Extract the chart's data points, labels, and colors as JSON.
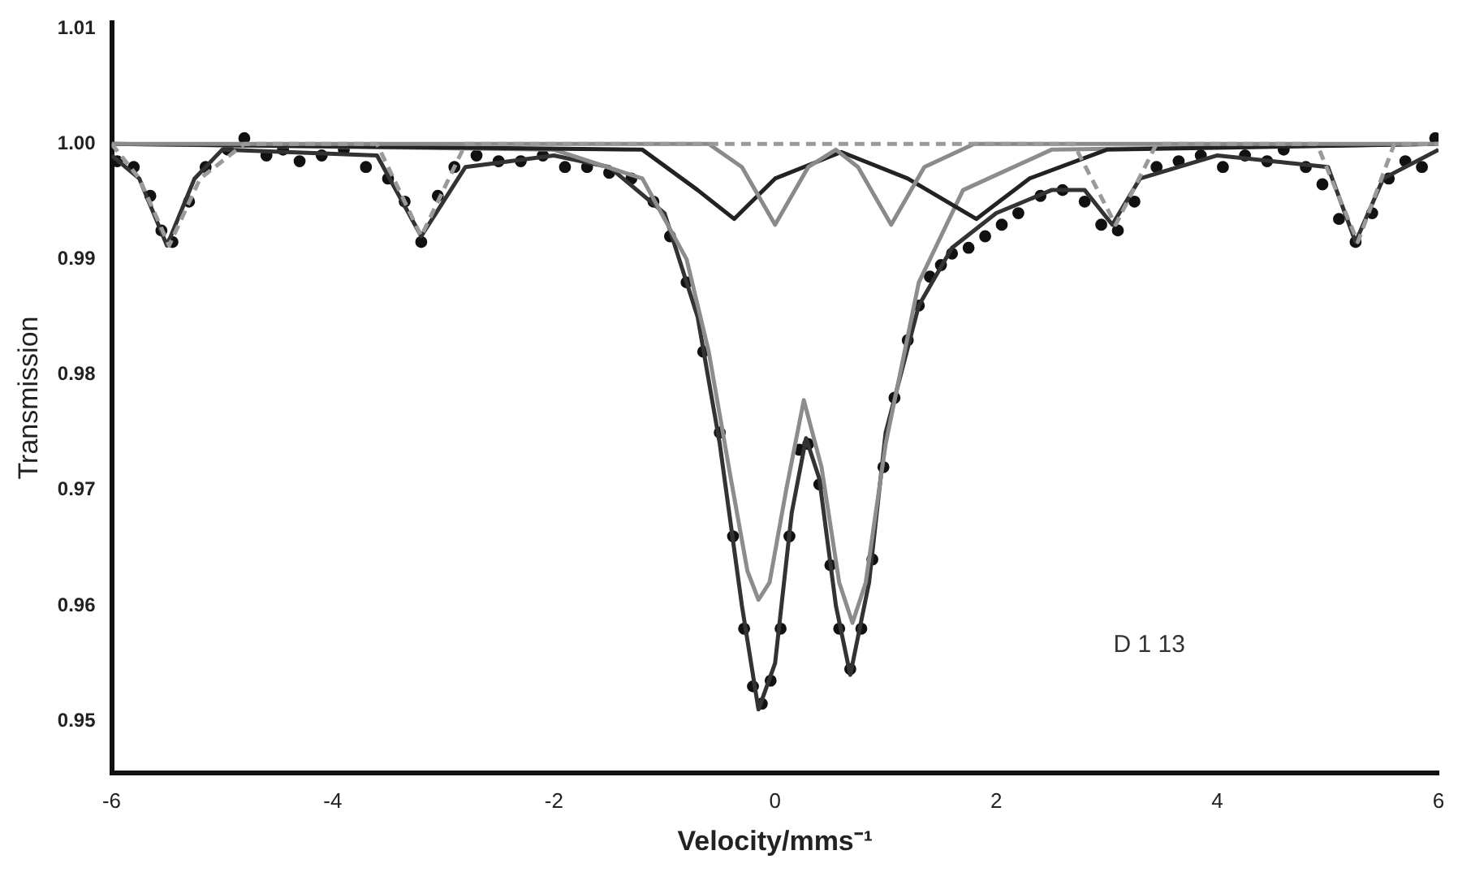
{
  "chart_data": {
    "type": "line",
    "xlabel": "Velocity/mms⁻¹",
    "ylabel": "Transmission",
    "xlim": [
      -6,
      6
    ],
    "xticks": [
      -6,
      -4,
      -2,
      0,
      2,
      4,
      6
    ],
    "ylim": [
      0.9455,
      1.0105
    ],
    "yticks": [
      0.95,
      0.96,
      0.97,
      0.98,
      0.99,
      {
        "value": 1,
        "label": "1.00"
      },
      1.01
    ],
    "grid": false,
    "legend": false,
    "annotations": [
      "D 1 13"
    ],
    "series": [
      {
        "color": "#9a9a9a",
        "line_style": "dashed",
        "marker": "none",
        "x": [
          -6,
          -5.75,
          -5.48,
          -5.2,
          -4.8,
          -3.6,
          -3.2,
          -2.8,
          2.7,
          3.08,
          3.45,
          4.9,
          5.27,
          5.6,
          6
        ],
        "values": [
          1.0,
          0.997,
          0.9912,
          0.997,
          1.0,
          1.0,
          0.992,
          1.0,
          1.0,
          0.993,
          1.0,
          1.0,
          0.9915,
          1.0,
          1.0
        ]
      },
      {
        "color": "#8a8a8a",
        "marker": "none",
        "x": [
          -6,
          -0.6,
          -0.3,
          0,
          0.3,
          0.55,
          0.75,
          1.05,
          1.35,
          1.8,
          6
        ],
        "values": [
          1.0,
          1.0,
          0.998,
          0.993,
          0.998,
          0.9995,
          0.998,
          0.993,
          0.998,
          1.0,
          1.0
        ]
      },
      {
        "color": "#222222",
        "marker": "none",
        "x": [
          -6,
          -1.2,
          -0.7,
          -0.37,
          0,
          0.6,
          1.2,
          1.82,
          2.3,
          3,
          6
        ],
        "values": [
          1.0,
          0.9995,
          0.996,
          0.9935,
          0.997,
          0.9993,
          0.997,
          0.9935,
          0.997,
          0.9995,
          1.0
        ]
      },
      {
        "color": "#8c8c8c",
        "marker": "none",
        "x": [
          -6,
          -2,
          -1.2,
          -0.8,
          -0.6,
          -0.4,
          -0.25,
          -0.15,
          -0.05,
          0.1,
          0.26,
          0.42,
          0.58,
          0.7,
          0.82,
          1.0,
          1.3,
          1.7,
          2.5,
          6
        ],
        "values": [
          1.0,
          0.9995,
          0.997,
          0.99,
          0.982,
          0.971,
          0.963,
          0.9605,
          0.962,
          0.97,
          0.9778,
          0.972,
          0.962,
          0.9585,
          0.962,
          0.974,
          0.988,
          0.996,
          0.9995,
          1.0
        ]
      },
      {
        "color": "#333333",
        "marker": "none",
        "x": [
          -6,
          -5.75,
          -5.5,
          -5.25,
          -5,
          -3.6,
          -3.2,
          -2.8,
          -2,
          -1.5,
          -1.0,
          -0.7,
          -0.5,
          -0.3,
          -0.15,
          0.0,
          0.15,
          0.28,
          0.4,
          0.55,
          0.68,
          0.85,
          1.0,
          1.3,
          1.6,
          2.0,
          2.5,
          2.8,
          3.05,
          3.3,
          4,
          5.0,
          5.25,
          5.5,
          6
        ],
        "values": [
          0.999,
          0.997,
          0.9912,
          0.997,
          0.9995,
          0.999,
          0.992,
          0.998,
          0.999,
          0.998,
          0.994,
          0.985,
          0.974,
          0.96,
          0.951,
          0.955,
          0.968,
          0.9745,
          0.971,
          0.96,
          0.954,
          0.962,
          0.975,
          0.986,
          0.991,
          0.994,
          0.996,
          0.996,
          0.993,
          0.997,
          0.999,
          0.998,
          0.9915,
          0.997,
          0.9995
        ]
      },
      {
        "type": "scatter",
        "color": "#111111",
        "marker": "circle",
        "x": [
          -5.95,
          -5.8,
          -5.65,
          -5.55,
          -5.45,
          -5.3,
          -5.15,
          -4.95,
          -4.8,
          -4.6,
          -4.45,
          -4.3,
          -4.1,
          -3.9,
          -3.7,
          -3.5,
          -3.35,
          -3.2,
          -3.05,
          -2.9,
          -2.7,
          -2.5,
          -2.3,
          -2.1,
          -1.9,
          -1.7,
          -1.5,
          -1.3,
          -1.1,
          -0.95,
          -0.8,
          -0.65,
          -0.5,
          -0.38,
          -0.28,
          -0.2,
          -0.12,
          -0.04,
          0.05,
          0.13,
          0.22,
          0.3,
          0.4,
          0.5,
          0.58,
          0.68,
          0.78,
          0.88,
          0.98,
          1.08,
          1.2,
          1.3,
          1.4,
          1.5,
          1.6,
          1.75,
          1.9,
          2.05,
          2.2,
          2.4,
          2.6,
          2.8,
          2.95,
          3.1,
          3.25,
          3.45,
          3.65,
          3.85,
          4.05,
          4.25,
          4.45,
          4.6,
          4.8,
          4.95,
          5.1,
          5.25,
          5.4,
          5.55,
          5.7,
          5.85,
          5.97
        ],
        "values": [
          0.9985,
          0.998,
          0.9955,
          0.9925,
          0.9915,
          0.995,
          0.998,
          0.9995,
          1.0005,
          0.999,
          0.9995,
          0.9985,
          0.999,
          0.9995,
          0.998,
          0.997,
          0.995,
          0.9915,
          0.9955,
          0.998,
          0.999,
          0.9985,
          0.9985,
          0.999,
          0.998,
          0.998,
          0.9975,
          0.997,
          0.995,
          0.992,
          0.988,
          0.982,
          0.975,
          0.966,
          0.958,
          0.953,
          0.9515,
          0.9535,
          0.958,
          0.966,
          0.9735,
          0.974,
          0.9705,
          0.9635,
          0.958,
          0.9545,
          0.958,
          0.964,
          0.972,
          0.978,
          0.983,
          0.986,
          0.9885,
          0.9895,
          0.9905,
          0.991,
          0.992,
          0.993,
          0.994,
          0.9955,
          0.996,
          0.995,
          0.993,
          0.9925,
          0.995,
          0.998,
          0.9985,
          0.999,
          0.998,
          0.999,
          0.9985,
          0.9995,
          0.998,
          0.9965,
          0.9935,
          0.9915,
          0.994,
          0.997,
          0.9985,
          0.998,
          1.0005
        ]
      }
    ]
  }
}
